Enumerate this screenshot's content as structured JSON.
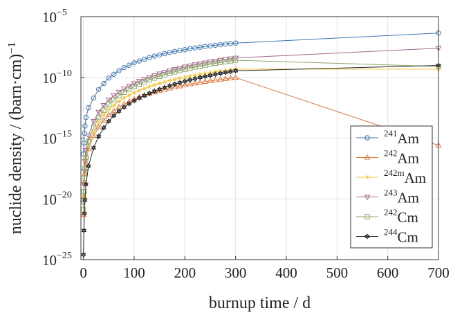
{
  "chart_data": {
    "type": "line",
    "title": "",
    "xlabel": "burnup time / d",
    "ylabel_prefix": "nuclide density / (barn·cm)",
    "ylabel_exponent": "−1",
    "y_scale": "log",
    "xlim": [
      -5,
      700
    ],
    "ylim_exp": [
      -25,
      -5
    ],
    "x_ticks": [
      0,
      100,
      200,
      300,
      400,
      500,
      600,
      700
    ],
    "x_tick_labels": [
      "0",
      "100",
      "200",
      "300",
      "400",
      "500",
      "600",
      "700"
    ],
    "y_ticks_exp": [
      -25,
      -20,
      -15,
      -10,
      -5
    ],
    "y_tick_base": "10",
    "y_tick_exponents": [
      "−25",
      "−20",
      "−15",
      "−10",
      "−5"
    ],
    "grid": true,
    "legend_position": "bottom-right",
    "x": [
      0,
      1,
      2,
      3,
      5,
      10,
      20,
      30,
      40,
      50,
      60,
      70,
      80,
      90,
      100,
      110,
      120,
      130,
      140,
      150,
      160,
      170,
      180,
      190,
      200,
      210,
      220,
      230,
      240,
      250,
      260,
      270,
      280,
      290,
      300,
      700
    ],
    "series": [
      {
        "name": "Am",
        "sup": "241",
        "color": "#3f74b2",
        "marker": "circle",
        "log10_values": [
          -16.3,
          -15.4,
          -14.6,
          -14.0,
          -13.3,
          -12.5,
          -11.7,
          -11.0,
          -10.5,
          -10.05,
          -9.75,
          -9.45,
          -9.2,
          -9.0,
          -8.8,
          -8.65,
          -8.5,
          -8.37,
          -8.25,
          -8.15,
          -8.05,
          -7.95,
          -7.87,
          -7.79,
          -7.72,
          -7.65,
          -7.58,
          -7.52,
          -7.46,
          -7.41,
          -7.36,
          -7.31,
          -7.26,
          -7.22,
          -7.18,
          -6.35
        ]
      },
      {
        "name": "Am",
        "sup": "242",
        "color": "#de7b45",
        "marker": "triangle-up",
        "log10_values": [
          -21.3,
          -19.8,
          -18.7,
          -17.9,
          -17.0,
          -15.9,
          -14.8,
          -14.1,
          -13.55,
          -13.1,
          -12.75,
          -12.45,
          -12.2,
          -11.98,
          -11.8,
          -11.63,
          -11.48,
          -11.35,
          -11.22,
          -11.11,
          -11.0,
          -10.9,
          -10.8,
          -10.72,
          -10.64,
          -10.56,
          -10.49,
          -10.42,
          -10.35,
          -10.29,
          -10.23,
          -10.17,
          -10.12,
          -10.07,
          -10.02,
          -15.6
        ]
      },
      {
        "name": "Am",
        "sup": "242m",
        "color": "#f0c53a",
        "marker": "asterisk",
        "log10_values": [
          -21.2,
          -19.7,
          -18.6,
          -17.8,
          -16.9,
          -15.7,
          -14.5,
          -13.7,
          -13.1,
          -12.65,
          -12.3,
          -11.98,
          -11.7,
          -11.47,
          -11.27,
          -11.08,
          -10.92,
          -10.77,
          -10.63,
          -10.5,
          -10.38,
          -10.27,
          -10.17,
          -10.07,
          -9.98,
          -9.9,
          -9.82,
          -9.74,
          -9.67,
          -9.6,
          -9.54,
          -9.48,
          -9.42,
          -9.37,
          -9.32,
          -9.32
        ]
      },
      {
        "name": "Am",
        "sup": "243",
        "color": "#a5668f",
        "marker": "triangle-down",
        "log10_values": [
          -20.3,
          -18.8,
          -17.7,
          -16.9,
          -16.0,
          -14.8,
          -13.6,
          -12.85,
          -12.3,
          -11.85,
          -11.5,
          -11.2,
          -10.94,
          -10.7,
          -10.5,
          -10.31,
          -10.14,
          -9.98,
          -9.84,
          -9.7,
          -9.57,
          -9.45,
          -9.34,
          -9.23,
          -9.13,
          -9.04,
          -8.95,
          -8.87,
          -8.79,
          -8.72,
          -8.65,
          -8.58,
          -8.52,
          -8.46,
          -8.4,
          -7.6
        ]
      },
      {
        "name": "Cm",
        "sup": "242",
        "color": "#8aa764",
        "marker": "square",
        "log10_values": [
          -20.9,
          -19.4,
          -18.3,
          -17.5,
          -16.6,
          -15.3,
          -14.1,
          -13.3,
          -12.7,
          -12.22,
          -11.85,
          -11.52,
          -11.23,
          -10.98,
          -10.76,
          -10.56,
          -10.38,
          -10.21,
          -10.06,
          -9.92,
          -9.79,
          -9.66,
          -9.55,
          -9.44,
          -9.34,
          -9.24,
          -9.15,
          -9.07,
          -8.99,
          -8.91,
          -8.84,
          -8.77,
          -8.71,
          -8.65,
          -8.59,
          -9.1
        ]
      },
      {
        "name": "Cm",
        "sup": "244",
        "color": "#2a2a2a",
        "marker": "hexagram",
        "log10_values": [
          -24.6,
          -22.6,
          -21.2,
          -20.1,
          -18.8,
          -17.3,
          -15.8,
          -14.85,
          -14.15,
          -13.6,
          -13.15,
          -12.78,
          -12.45,
          -12.17,
          -11.92,
          -11.7,
          -11.5,
          -11.31,
          -11.14,
          -10.98,
          -10.83,
          -10.69,
          -10.56,
          -10.44,
          -10.32,
          -10.21,
          -10.11,
          -10.01,
          -9.92,
          -9.83,
          -9.75,
          -9.67,
          -9.6,
          -9.53,
          -9.46,
          -9.02
        ]
      }
    ]
  }
}
